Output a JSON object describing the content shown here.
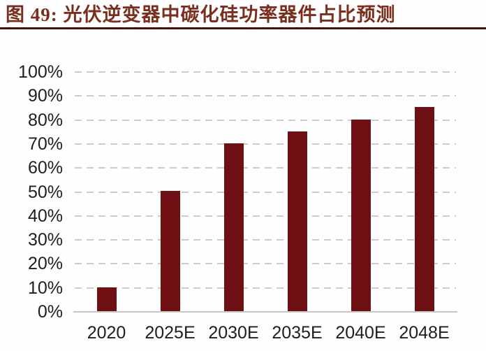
{
  "header": {
    "title": "图 49:  光伏逆变器中碳化硅功率器件占比预测"
  },
  "chart_data": {
    "type": "bar",
    "title": "光伏逆变器中碳化硅功率器件占比预测",
    "categories": [
      "2020",
      "2025E",
      "2030E",
      "2035E",
      "2040E",
      "2048E"
    ],
    "values": [
      10,
      50,
      70,
      75,
      80,
      85
    ],
    "xlabel": "",
    "ylabel": "",
    "ylim": [
      0,
      100
    ],
    "yticks": [
      0,
      10,
      20,
      30,
      40,
      50,
      60,
      70,
      80,
      90,
      100
    ],
    "ytick_suffix": "%",
    "grid": "horizontal-dashed",
    "legend_position": "none",
    "bar_color": "#6e1013"
  },
  "colors": {
    "bar": "#6e1013",
    "title_text": "#7b2e1d",
    "title_rule": "#4e0e0e",
    "gridline": "#cccccc",
    "axis_line": "#c7c7c7",
    "tick_text": "#1f1f1f",
    "background": "#fefefe"
  }
}
